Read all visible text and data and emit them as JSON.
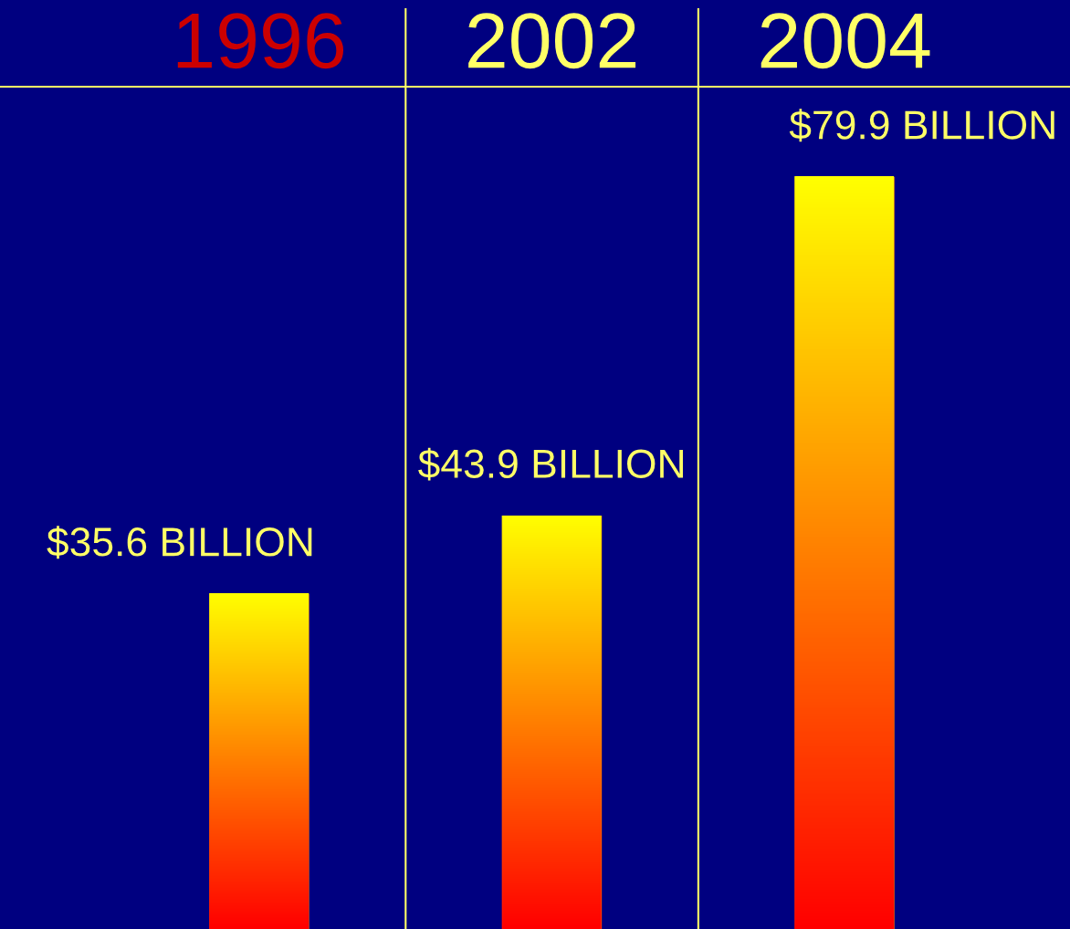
{
  "chart_data": {
    "type": "bar",
    "categories": [
      "1996",
      "2002",
      "2004"
    ],
    "values": [
      35.6,
      43.9,
      79.9
    ],
    "color": "#ff8800",
    "value_labels": [
      "$35.6 BILLION",
      "$43.9 BILLION",
      "$79.9 BILLION"
    ],
    "grid": false
  }
}
